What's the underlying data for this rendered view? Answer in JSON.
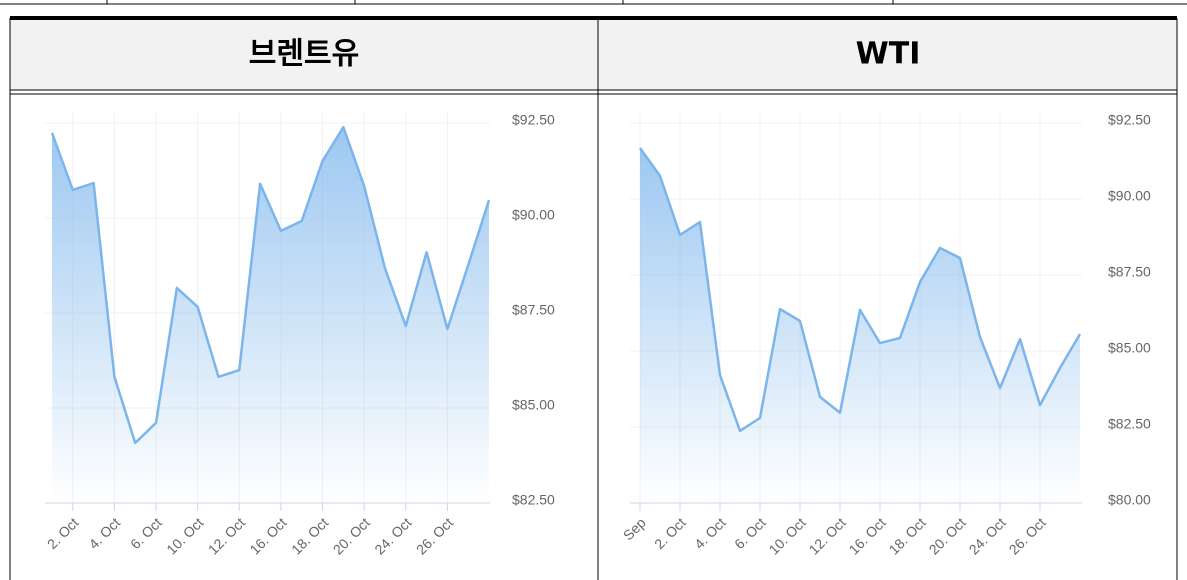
{
  "chart_data": [
    {
      "type": "area",
      "title": "브렌트유",
      "categories": [
        null,
        "2. Oct",
        null,
        "4. Oct",
        null,
        "6. Oct",
        null,
        "10. Oct",
        null,
        "12. Oct",
        null,
        "16. Oct",
        null,
        "18. Oct",
        null,
        "20. Oct",
        null,
        "24. Oct",
        null,
        "26. Oct",
        null,
        null
      ],
      "values": [
        92.24,
        90.74,
        90.92,
        85.82,
        84.08,
        84.61,
        88.16,
        87.66,
        85.82,
        86.0,
        90.9,
        89.66,
        89.92,
        91.5,
        92.39,
        90.84,
        88.68,
        87.16,
        89.1,
        87.08,
        88.76,
        90.47
      ],
      "color": "#7cb5ec",
      "ylim": [
        82.5,
        92.5
      ],
      "yticks": [
        {
          "value": 82.5,
          "label": "$82.50"
        },
        {
          "value": 85,
          "label": "$85.00"
        },
        {
          "value": 87.5,
          "label": "$87.50"
        },
        {
          "value": 90,
          "label": "$90.00"
        },
        {
          "value": 92.5,
          "label": "$92.50"
        }
      ],
      "grid": true
    },
    {
      "type": "area",
      "title": "WTI",
      "categories": [
        "Sep",
        null,
        "2. Oct",
        null,
        "4. Oct",
        null,
        "6. Oct",
        null,
        "10. Oct",
        null,
        "12. Oct",
        null,
        "16. Oct",
        null,
        "18. Oct",
        null,
        "20. Oct",
        null,
        "24. Oct",
        null,
        "26. Oct",
        null,
        null
      ],
      "values": [
        91.68,
        90.76,
        88.82,
        89.24,
        84.21,
        82.37,
        82.8,
        86.38,
        85.99,
        83.49,
        82.97,
        86.35,
        85.26,
        85.43,
        87.27,
        88.39,
        88.06,
        85.46,
        83.78,
        85.39,
        83.22,
        84.44,
        85.56
      ],
      "color": "#7cb5ec",
      "ylim": [
        80,
        92.5
      ],
      "yticks": [
        {
          "value": 80,
          "label": "$80.00"
        },
        {
          "value": 82.5,
          "label": "$82.50"
        },
        {
          "value": 85,
          "label": "$85.00"
        },
        {
          "value": 87.5,
          "label": "$87.50"
        },
        {
          "value": 90,
          "label": "$90.00"
        },
        {
          "value": 92.5,
          "label": "$92.50"
        }
      ],
      "grid": true
    }
  ]
}
